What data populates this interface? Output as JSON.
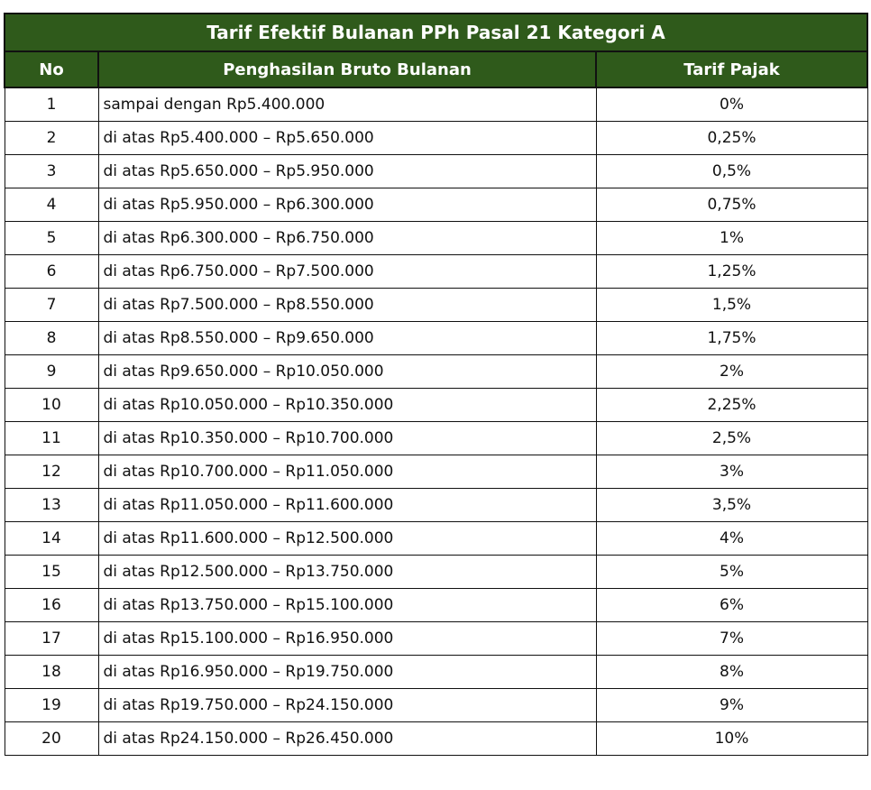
{
  "table": {
    "title": "Tarif Efektif Bulanan PPh Pasal 21 Kategori A",
    "headers": {
      "no": "No",
      "range": "Penghasilan Bruto Bulanan",
      "rate": "Tarif Pajak"
    },
    "rows": [
      {
        "no": "1",
        "range": "sampai dengan Rp5.400.000",
        "rate": "0%"
      },
      {
        "no": "2",
        "range": "di atas Rp5.400.000 – Rp5.650.000",
        "rate": "0,25%"
      },
      {
        "no": "3",
        "range": "di atas Rp5.650.000 – Rp5.950.000",
        "rate": "0,5%"
      },
      {
        "no": "4",
        "range": "di atas Rp5.950.000 – Rp6.300.000",
        "rate": "0,75%"
      },
      {
        "no": "5",
        "range": "di atas Rp6.300.000 – Rp6.750.000",
        "rate": "1%"
      },
      {
        "no": "6",
        "range": "di atas Rp6.750.000 – Rp7.500.000",
        "rate": "1,25%"
      },
      {
        "no": "7",
        "range": "di atas Rp7.500.000 – Rp8.550.000",
        "rate": "1,5%"
      },
      {
        "no": "8",
        "range": "di atas Rp8.550.000 – Rp9.650.000",
        "rate": "1,75%"
      },
      {
        "no": "9",
        "range": "di atas Rp9.650.000 – Rp10.050.000",
        "rate": "2%"
      },
      {
        "no": "10",
        "range": "di atas Rp10.050.000 – Rp10.350.000",
        "rate": "2,25%"
      },
      {
        "no": "11",
        "range": "di atas Rp10.350.000 – Rp10.700.000",
        "rate": "2,5%"
      },
      {
        "no": "12",
        "range": "di atas Rp10.700.000 – Rp11.050.000",
        "rate": "3%"
      },
      {
        "no": "13",
        "range": "di atas Rp11.050.000 – Rp11.600.000",
        "rate": "3,5%"
      },
      {
        "no": "14",
        "range": "di atas Rp11.600.000 – Rp12.500.000",
        "rate": "4%"
      },
      {
        "no": "15",
        "range": "di atas Rp12.500.000 – Rp13.750.000",
        "rate": "5%"
      },
      {
        "no": "16",
        "range": "di atas Rp13.750.000 – Rp15.100.000",
        "rate": "6%"
      },
      {
        "no": "17",
        "range": "di atas Rp15.100.000 – Rp16.950.000",
        "rate": "7%"
      },
      {
        "no": "18",
        "range": "di atas Rp16.950.000 – Rp19.750.000",
        "rate": "8%"
      },
      {
        "no": "19",
        "range": "di atas Rp19.750.000 – Rp24.150.000",
        "rate": "9%"
      },
      {
        "no": "20",
        "range": "di atas Rp24.150.000 – Rp26.450.000",
        "rate": "10%"
      }
    ]
  },
  "colors": {
    "header_bg": "#2f5a1b",
    "header_text": "#ffffff",
    "border": "#111111"
  }
}
